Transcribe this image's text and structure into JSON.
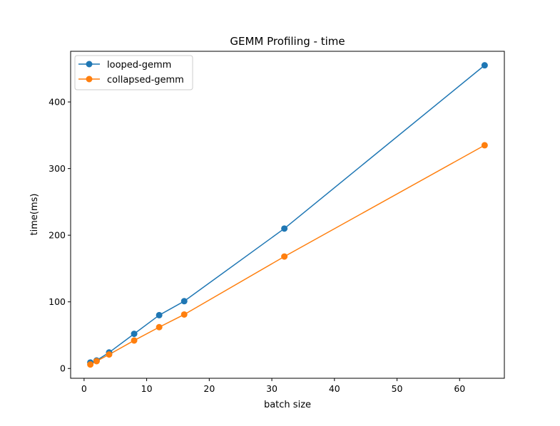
{
  "chart_data": {
    "type": "line",
    "title": "GEMM Profiling - time",
    "xlabel": "batch size",
    "ylabel": "time(ms)",
    "xlim": [
      -2.15,
      67.15
    ],
    "ylim": [
      -14.7,
      476
    ],
    "xticks": [
      0,
      10,
      20,
      30,
      40,
      50,
      60
    ],
    "yticks": [
      0,
      100,
      200,
      300,
      400
    ],
    "grid": false,
    "legend_position": "upper-left",
    "x": [
      1,
      2,
      4,
      8,
      12,
      16,
      32,
      64
    ],
    "series": [
      {
        "name": "looped-gemm",
        "color": "#1f77b4",
        "marker": "circle",
        "values": [
          9,
          12,
          24,
          52,
          80,
          101,
          210,
          455
        ]
      },
      {
        "name": "collapsed-gemm",
        "color": "#ff7f0e",
        "marker": "circle",
        "values": [
          6,
          11,
          21,
          42,
          62,
          81,
          168,
          335
        ]
      }
    ]
  }
}
